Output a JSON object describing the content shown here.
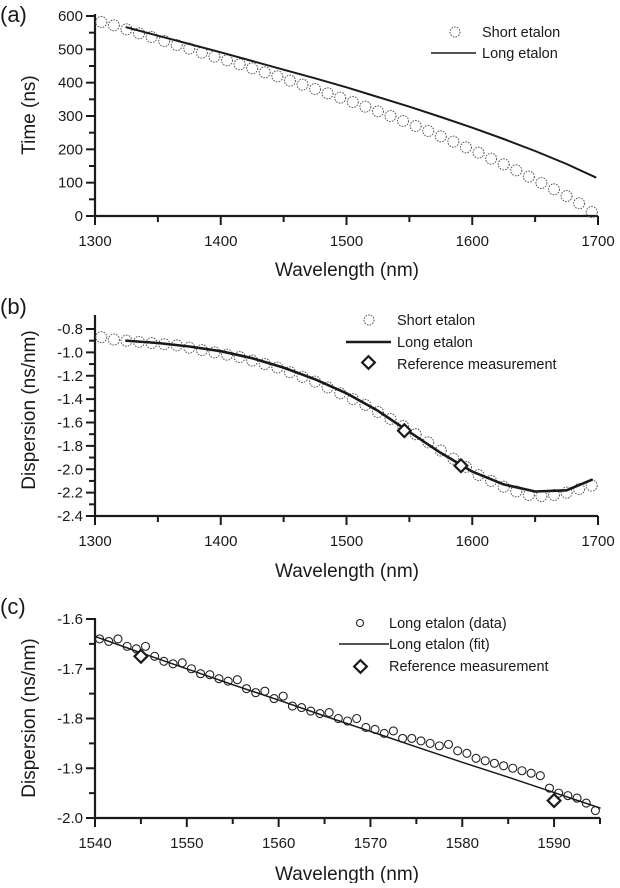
{
  "figure": {
    "panels": [
      {
        "id": "a",
        "label": "(a)",
        "xlabel": "Wavelength (nm)",
        "ylabel": "Time (ns)",
        "legend": [
          {
            "label": "Short etalon",
            "marker": "circle-dashed"
          },
          {
            "label": "Long etalon",
            "marker": "line"
          }
        ]
      },
      {
        "id": "b",
        "label": "(b)",
        "xlabel": "Wavelength (nm)",
        "ylabel": "Dispersion (ns/nm)",
        "legend": [
          {
            "label": "Short etalon",
            "marker": "circle-dashed"
          },
          {
            "label": "Long etalon",
            "marker": "line"
          },
          {
            "label": "Reference measurement",
            "marker": "diamond"
          }
        ]
      },
      {
        "id": "c",
        "label": "(c)",
        "xlabel": "Wavelength (nm)",
        "ylabel": "Dispersion (ns/nm)",
        "legend": [
          {
            "label": "Long etalon (data)",
            "marker": "circle"
          },
          {
            "label": "Long etalon (fit)",
            "marker": "line"
          },
          {
            "label": "Reference measurement",
            "marker": "diamond"
          }
        ]
      }
    ]
  },
  "chart_data": [
    {
      "type": "scatter",
      "panel": "(a)",
      "title": "",
      "xlabel": "Wavelength (nm)",
      "ylabel": "Time (ns)",
      "xlim": [
        1300,
        1700
      ],
      "ylim": [
        0,
        600
      ],
      "xticks": [
        1300,
        1400,
        1500,
        1600,
        1700
      ],
      "yticks": [
        0,
        100,
        200,
        300,
        400,
        500,
        600
      ],
      "grid": false,
      "legend_position": "upper right",
      "series": [
        {
          "name": "Short etalon",
          "style": "dashed-circle markers",
          "x": [
            1305,
            1315,
            1325,
            1335,
            1345,
            1355,
            1365,
            1375,
            1385,
            1395,
            1405,
            1415,
            1425,
            1435,
            1445,
            1455,
            1465,
            1475,
            1485,
            1495,
            1505,
            1515,
            1525,
            1535,
            1545,
            1555,
            1565,
            1575,
            1585,
            1595,
            1605,
            1615,
            1625,
            1635,
            1645,
            1655,
            1665,
            1675,
            1685,
            1695
          ],
          "y": [
            582,
            572,
            560,
            548,
            537,
            525,
            513,
            502,
            490,
            478,
            467,
            455,
            443,
            431,
            419,
            406,
            394,
            381,
            368,
            355,
            342,
            328,
            314,
            300,
            285,
            270,
            255,
            239,
            223,
            206,
            190,
            172,
            155,
            137,
            118,
            99,
            80,
            60,
            38,
            12
          ]
        },
        {
          "name": "Long etalon",
          "style": "solid line",
          "x": [
            1325,
            1350,
            1375,
            1400,
            1425,
            1450,
            1475,
            1500,
            1525,
            1550,
            1575,
            1600,
            1625,
            1650,
            1675,
            1698
          ],
          "y": [
            566,
            541,
            516,
            491,
            465,
            439,
            413,
            386,
            357,
            328,
            297,
            265,
            231,
            195,
            156,
            116
          ]
        }
      ]
    },
    {
      "type": "scatter",
      "panel": "(b)",
      "title": "",
      "xlabel": "Wavelength (nm)",
      "ylabel": "Dispersion (ns/nm)",
      "xlim": [
        1300,
        1700
      ],
      "ylim": [
        -2.4,
        -0.7
      ],
      "xticks": [
        1300,
        1400,
        1500,
        1600,
        1700
      ],
      "yticks": [
        -2.4,
        -2.2,
        -2.0,
        -1.8,
        -1.6,
        -1.4,
        -1.2,
        -1.0,
        -0.8
      ],
      "grid": false,
      "legend_position": "upper right",
      "series": [
        {
          "name": "Short etalon",
          "style": "dashed-circle markers",
          "x": [
            1305,
            1315,
            1325,
            1335,
            1345,
            1355,
            1365,
            1375,
            1385,
            1395,
            1405,
            1415,
            1425,
            1435,
            1445,
            1455,
            1465,
            1475,
            1485,
            1495,
            1505,
            1515,
            1525,
            1535,
            1545,
            1555,
            1565,
            1575,
            1585,
            1595,
            1605,
            1615,
            1625,
            1635,
            1645,
            1655,
            1665,
            1675,
            1685,
            1695
          ],
          "y": [
            -0.87,
            -0.89,
            -0.9,
            -0.91,
            -0.92,
            -0.93,
            -0.94,
            -0.96,
            -0.98,
            -1.0,
            -1.02,
            -1.04,
            -1.07,
            -1.1,
            -1.13,
            -1.17,
            -1.21,
            -1.25,
            -1.3,
            -1.35,
            -1.4,
            -1.45,
            -1.51,
            -1.57,
            -1.63,
            -1.7,
            -1.77,
            -1.84,
            -1.91,
            -1.98,
            -2.05,
            -2.1,
            -2.15,
            -2.19,
            -2.22,
            -2.23,
            -2.22,
            -2.2,
            -2.17,
            -2.14
          ]
        },
        {
          "name": "Long etalon",
          "style": "solid line",
          "x": [
            1325,
            1350,
            1375,
            1400,
            1425,
            1450,
            1475,
            1500,
            1525,
            1550,
            1575,
            1600,
            1625,
            1650,
            1675,
            1695
          ],
          "y": [
            -0.9,
            -0.92,
            -0.95,
            -0.99,
            -1.05,
            -1.13,
            -1.23,
            -1.35,
            -1.5,
            -1.68,
            -1.86,
            -2.02,
            -2.13,
            -2.19,
            -2.18,
            -2.09
          ]
        },
        {
          "name": "Reference measurement",
          "style": "diamond markers",
          "x": [
            1546,
            1591
          ],
          "y": [
            -1.67,
            -1.97
          ]
        }
      ]
    },
    {
      "type": "scatter",
      "panel": "(c)",
      "title": "",
      "xlabel": "Wavelength (nm)",
      "ylabel": "Dispersion (ns/nm)",
      "xlim": [
        1540,
        1595
      ],
      "ylim": [
        -2.0,
        -1.6
      ],
      "xticks": [
        1540,
        1550,
        1560,
        1570,
        1580,
        1590
      ],
      "yticks": [
        -2.0,
        -1.9,
        -1.8,
        -1.7,
        -1.6
      ],
      "grid": false,
      "legend_position": "upper right",
      "series": [
        {
          "name": "Long etalon (data)",
          "style": "circle markers",
          "x": [
            1540.5,
            1541.5,
            1542.5,
            1543.5,
            1544.5,
            1545.5,
            1546.5,
            1547.5,
            1548.5,
            1549.5,
            1550.5,
            1551.5,
            1552.5,
            1553.5,
            1554.5,
            1555.5,
            1556.5,
            1557.5,
            1558.5,
            1559.5,
            1560.5,
            1561.5,
            1562.5,
            1563.5,
            1564.5,
            1565.5,
            1566.5,
            1567.5,
            1568.5,
            1569.5,
            1570.5,
            1571.5,
            1572.5,
            1573.5,
            1574.5,
            1575.5,
            1576.5,
            1577.5,
            1578.5,
            1579.5,
            1580.5,
            1581.5,
            1582.5,
            1583.5,
            1584.5,
            1585.5,
            1586.5,
            1587.5,
            1588.5,
            1589.5,
            1590.5,
            1591.5,
            1592.5,
            1593.5,
            1594.5
          ],
          "y": [
            -1.64,
            -1.645,
            -1.64,
            -1.655,
            -1.66,
            -1.655,
            -1.675,
            -1.685,
            -1.69,
            -1.688,
            -1.7,
            -1.71,
            -1.712,
            -1.72,
            -1.725,
            -1.722,
            -1.74,
            -1.748,
            -1.745,
            -1.76,
            -1.755,
            -1.775,
            -1.778,
            -1.785,
            -1.79,
            -1.788,
            -1.8,
            -1.805,
            -1.8,
            -1.818,
            -1.822,
            -1.83,
            -1.825,
            -1.84,
            -1.84,
            -1.845,
            -1.85,
            -1.855,
            -1.852,
            -1.865,
            -1.87,
            -1.88,
            -1.885,
            -1.89,
            -1.895,
            -1.9,
            -1.905,
            -1.91,
            -1.915,
            -1.94,
            -1.95,
            -1.955,
            -1.96,
            -1.97,
            -1.985
          ]
        },
        {
          "name": "Long etalon (fit)",
          "style": "solid line",
          "x": [
            1540,
            1545,
            1550,
            1555,
            1560,
            1565,
            1570,
            1575,
            1580,
            1585,
            1590,
            1595
          ],
          "y": [
            -1.635,
            -1.668,
            -1.7,
            -1.732,
            -1.763,
            -1.795,
            -1.826,
            -1.857,
            -1.888,
            -1.918,
            -1.949,
            -1.98
          ]
        },
        {
          "name": "Reference measurement",
          "style": "diamond markers",
          "x": [
            1545,
            1590
          ],
          "y": [
            -1.675,
            -1.965
          ]
        }
      ]
    }
  ]
}
